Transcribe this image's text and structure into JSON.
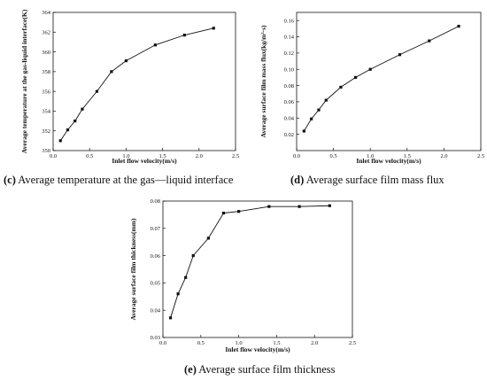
{
  "charts": [
    {
      "id": "c",
      "caption": {
        "letter": "(c)",
        "text": " Average temperature at the gas—liquid interface"
      },
      "chart_data": {
        "type": "line",
        "title": "",
        "xlabel": "Inlet flow velocity(m/s)",
        "ylabel": "Average temperature at the gas-liquid interface(K)",
        "xlim": [
          0,
          2.5
        ],
        "ylim": [
          350,
          364
        ],
        "x_ticks": [
          0.0,
          0.5,
          1.0,
          1.5,
          2.0,
          2.5
        ],
        "y_ticks": [
          350,
          352,
          354,
          356,
          358,
          360,
          362,
          364
        ],
        "x_tick_labels": [
          "0.0",
          "0.5",
          "1.0",
          "1.5",
          "2.0",
          "2.5"
        ],
        "y_tick_labels": [
          "350",
          "352",
          "354",
          "356",
          "358",
          "360",
          "362",
          "364"
        ],
        "grid": false,
        "series": [
          {
            "x": [
              0.1,
              0.2,
              0.3,
              0.4,
              0.6,
              0.8,
              1.0,
              1.4,
              1.8,
              2.2
            ],
            "y": [
              351.0,
              352.1,
              353.0,
              354.2,
              356.0,
              358.0,
              359.1,
              360.7,
              361.7,
              362.4
            ]
          }
        ]
      }
    },
    {
      "id": "d",
      "caption": {
        "letter": "(d)",
        "text": " Average surface film mass flux"
      },
      "chart_data": {
        "type": "line",
        "title": "",
        "xlabel": "Inlet flow velocity(m/s)",
        "ylabel": "Average surface film mass flux(kg/m²·s)",
        "xlim": [
          0,
          2.5
        ],
        "ylim": [
          0.0,
          0.17
        ],
        "x_ticks": [
          0.0,
          0.5,
          1.0,
          1.5,
          2.0,
          2.5
        ],
        "y_ticks": [
          0.02,
          0.04,
          0.06,
          0.08,
          0.1,
          0.12,
          0.14,
          0.16
        ],
        "x_tick_labels": [
          "0.0",
          "0.5",
          "1.0",
          "1.5",
          "2.0",
          "2.5"
        ],
        "y_tick_labels": [
          "0.02",
          "0.04",
          "0.06",
          "0.08",
          "0.10",
          "0.12",
          "0.14",
          "0.16"
        ],
        "grid": false,
        "series": [
          {
            "x": [
              0.1,
              0.2,
              0.3,
              0.4,
              0.6,
              0.8,
              1.0,
              1.4,
              1.8,
              2.2
            ],
            "y": [
              0.024,
              0.039,
              0.05,
              0.062,
              0.078,
              0.09,
              0.1,
              0.118,
              0.135,
              0.153
            ]
          }
        ]
      }
    },
    {
      "id": "e",
      "caption": {
        "letter": "(e)",
        "text": " Average surface film thickness"
      },
      "chart_data": {
        "type": "line",
        "title": "",
        "xlabel": "Inlet flow velocity(m/s)",
        "ylabel": "Average surface film thickness(mm)",
        "xlim": [
          0,
          2.5
        ],
        "ylim": [
          0.03,
          0.08
        ],
        "x_ticks": [
          0.0,
          0.5,
          1.0,
          1.5,
          2.0,
          2.5
        ],
        "y_ticks": [
          0.03,
          0.04,
          0.05,
          0.06,
          0.07,
          0.08
        ],
        "x_tick_labels": [
          "0.0",
          "0.5",
          "1.0",
          "1.5",
          "2.0",
          "2.5"
        ],
        "y_tick_labels": [
          "0.03",
          "0.04",
          "0.05",
          "0.06",
          "0.07",
          "0.08"
        ],
        "grid": false,
        "series": [
          {
            "x": [
              0.1,
              0.2,
              0.3,
              0.4,
              0.6,
              0.8,
              1.0,
              1.4,
              1.8,
              2.2
            ],
            "y": [
              0.0372,
              0.046,
              0.052,
              0.06,
              0.0664,
              0.0756,
              0.0762,
              0.078,
              0.078,
              0.0783
            ]
          }
        ]
      }
    }
  ]
}
